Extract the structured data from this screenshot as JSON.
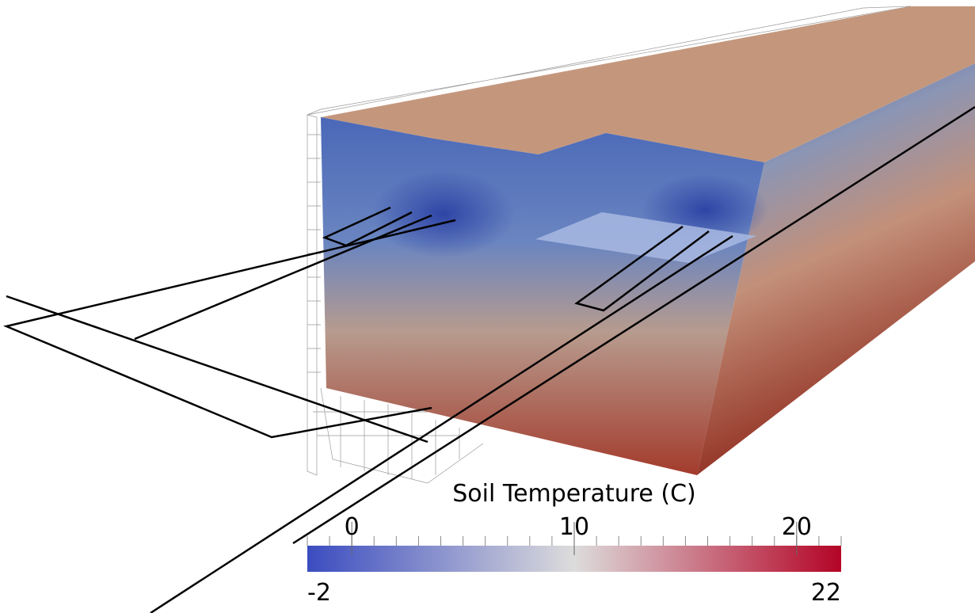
{
  "colorbar": {
    "title": "Soil Temperature (C)",
    "min": -2,
    "max": 22,
    "ticks": [
      0,
      10,
      20
    ],
    "colors": [
      "#3b4cc0",
      "#dddcdc",
      "#b40426"
    ]
  }
}
